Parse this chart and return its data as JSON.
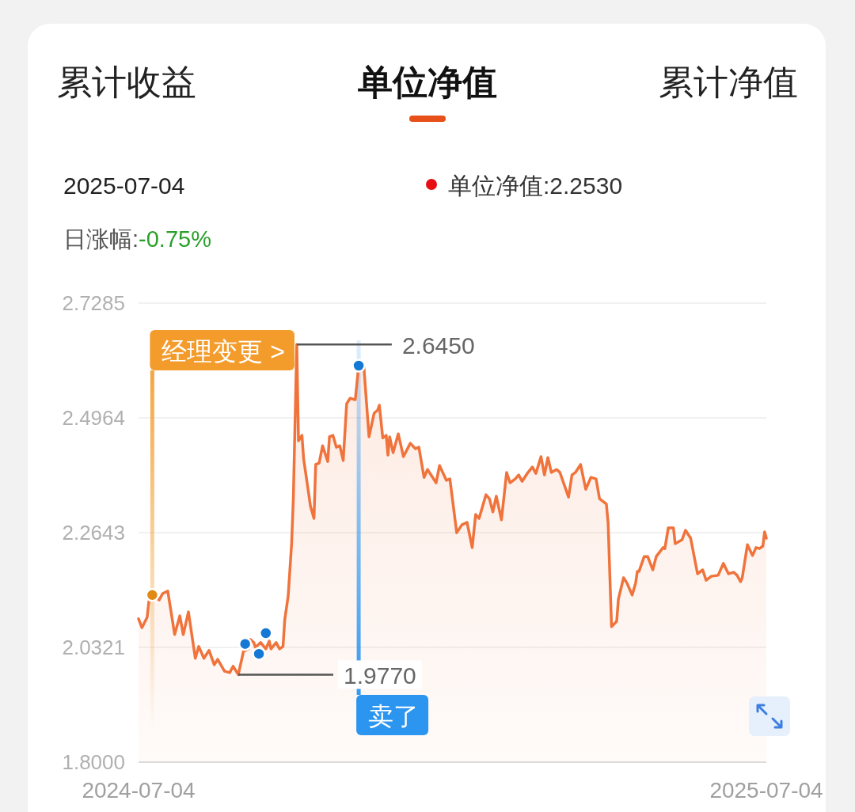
{
  "chart_data": {
    "type": "area",
    "annotations": [
      "累计收益",
      "单位净值",
      "累计净值",
      "2025-07-04",
      "单位净值:2.2530",
      "日涨幅:",
      "-0.75%",
      "2.6450",
      "1.9770"
    ],
    "x": [
      "2024-07-04",
      "2024-07-06",
      "2024-07-09",
      "2024-07-10",
      "2024-07-12",
      "2024-07-16",
      "2024-07-18",
      "2024-07-21",
      "2024-07-25",
      "2024-07-28",
      "2024-07-30",
      "2024-08-02",
      "2024-08-06",
      "2024-08-08",
      "2024-08-11",
      "2024-08-14",
      "2024-08-17",
      "2024-08-19",
      "2024-08-23",
      "2024-08-26",
      "2024-08-28",
      "2024-08-31",
      "2024-09-03",
      "2024-09-06",
      "2024-09-07",
      "2024-09-09",
      "2024-09-10",
      "2024-09-13",
      "2024-09-16",
      "2024-09-18",
      "2024-09-19",
      "2024-09-22",
      "2024-09-24",
      "2024-09-26",
      "2024-09-27",
      "2024-09-29",
      "2024-10-01",
      "2024-10-02",
      "2024-10-04",
      "2024-10-05",
      "2024-10-07",
      "2024-10-08",
      "2024-10-10",
      "2024-10-12",
      "2024-10-14",
      "2024-10-15",
      "2024-10-17",
      "2024-10-19",
      "2024-10-22",
      "2024-10-23",
      "2024-10-25",
      "2024-10-27",
      "2024-10-29",
      "2024-10-31",
      "2024-11-02",
      "2024-11-04",
      "2024-11-07",
      "2024-11-09",
      "2024-11-12",
      "2024-11-15",
      "2024-11-18",
      "2024-11-20",
      "2024-11-21",
      "2024-11-23",
      "2024-11-25",
      "2024-11-26",
      "2024-11-27",
      "2024-11-29",
      "2024-12-02",
      "2024-12-05",
      "2024-12-09",
      "2024-12-12",
      "2024-12-14",
      "2024-12-17",
      "2024-12-19",
      "2024-12-24",
      "2024-12-26",
      "2024-12-30",
      "2025-01-01",
      "2025-01-05",
      "2025-01-08",
      "2025-01-11",
      "2025-01-14",
      "2025-01-16",
      "2025-01-18",
      "2025-01-22",
      "2025-01-24",
      "2025-01-26",
      "2025-01-28",
      "2025-01-31",
      "2025-02-03",
      "2025-02-05",
      "2025-02-08",
      "2025-02-10",
      "2025-02-12",
      "2025-02-15",
      "2025-02-18",
      "2025-02-20",
      "2025-02-23",
      "2025-02-25",
      "2025-02-27",
      "2025-03-01",
      "2025-03-04",
      "2025-03-06",
      "2025-03-11",
      "2025-03-13",
      "2025-03-15",
      "2025-03-18",
      "2025-03-21",
      "2025-03-24",
      "2025-03-27",
      "2025-03-29",
      "2025-04-02",
      "2025-04-03",
      "2025-04-05",
      "2025-04-08",
      "2025-04-09",
      "2025-04-12",
      "2025-04-14",
      "2025-04-17",
      "2025-04-19",
      "2025-04-20",
      "2025-04-21",
      "2025-04-24",
      "2025-04-26",
      "2025-04-29",
      "2025-05-01",
      "2025-05-05",
      "2025-05-06",
      "2025-05-08",
      "2025-05-11",
      "2025-05-12",
      "2025-05-16",
      "2025-05-18",
      "2025-05-21",
      "2025-05-25",
      "2025-05-28",
      "2025-05-30",
      "2025-06-02",
      "2025-06-06",
      "2025-06-09",
      "2025-06-12",
      "2025-06-15",
      "2025-06-17",
      "2025-06-19",
      "2025-06-20",
      "2025-06-23",
      "2025-06-26",
      "2025-06-28",
      "2025-06-30",
      "2025-07-02",
      "2025-07-03",
      "2025-07-04"
    ],
    "series": [
      {
        "color": "#f0733c",
        "values": [
          2.09,
          2.072,
          2.093,
          2.125,
          2.138,
          2.128,
          2.141,
          2.146,
          2.058,
          2.096,
          2.058,
          2.104,
          2.01,
          2.034,
          2.01,
          2.026,
          1.997,
          2.008,
          1.984,
          1.981,
          1.994,
          1.977,
          2.024,
          2.029,
          2.048,
          2.042,
          2.032,
          2.042,
          2.029,
          2.045,
          2.029,
          2.042,
          2.029,
          2.034,
          2.088,
          2.136,
          2.242,
          2.333,
          2.645,
          2.45,
          2.461,
          2.413,
          2.365,
          2.317,
          2.293,
          2.402,
          2.405,
          2.44,
          2.408,
          2.458,
          2.461,
          2.437,
          2.44,
          2.41,
          2.525,
          2.536,
          2.533,
          2.602,
          2.6,
          2.458,
          2.506,
          2.512,
          2.522,
          2.456,
          2.461,
          2.421,
          2.458,
          2.426,
          2.464,
          2.418,
          2.445,
          2.434,
          2.437,
          2.376,
          2.392,
          2.365,
          2.4,
          2.37,
          2.373,
          2.264,
          2.28,
          2.285,
          2.234,
          2.301,
          2.293,
          2.341,
          2.333,
          2.306,
          2.338,
          2.29,
          2.386,
          2.365,
          2.373,
          2.381,
          2.368,
          2.384,
          2.397,
          2.384,
          2.418,
          2.381,
          2.416,
          2.386,
          2.392,
          2.386,
          2.336,
          2.381,
          2.386,
          2.402,
          2.352,
          2.376,
          2.373,
          2.333,
          2.322,
          2.285,
          2.074,
          2.085,
          2.13,
          2.173,
          2.162,
          2.138,
          2.162,
          2.186,
          2.186,
          2.216,
          2.216,
          2.189,
          2.216,
          2.234,
          2.232,
          2.274,
          2.274,
          2.242,
          2.25,
          2.269,
          2.253,
          2.181,
          2.189,
          2.168,
          2.176,
          2.178,
          2.202,
          2.181,
          2.184,
          2.178,
          2.165,
          2.173,
          2.24,
          2.218,
          2.234,
          2.232,
          2.237,
          2.266,
          2.253
        ]
      },
      {
        "type": "scatter",
        "color": "#1478d4",
        "x": [
          "2024-09-04",
          "2024-09-12",
          "2024-09-16",
          "2024-11-09"
        ],
        "values": [
          2.039,
          2.019,
          2.061,
          2.602
        ]
      },
      {
        "type": "scatter",
        "color": "#e08a14",
        "x": [
          "2024-07-12"
        ],
        "values": [
          2.138
        ]
      }
    ],
    "xlim": [
      "2024-07-04",
      "2025-07-04"
    ],
    "xticks": [
      "2024-07-04",
      "2025-07-04"
    ],
    "ylim": [
      1.8,
      2.7285
    ],
    "yticks": [
      {
        "value": 1.8,
        "label": "1.8000"
      },
      2.0321,
      2.2643,
      2.4964,
      2.7285
    ],
    "grid": "y",
    "ref_lines": [
      {
        "axis": "x",
        "value": "2024-07-12",
        "label": "经理变更 >",
        "color": "#f39c2c"
      },
      {
        "axis": "x",
        "value": "2024-11-09",
        "label": "卖了",
        "color": "#2b95f0"
      }
    ]
  }
}
